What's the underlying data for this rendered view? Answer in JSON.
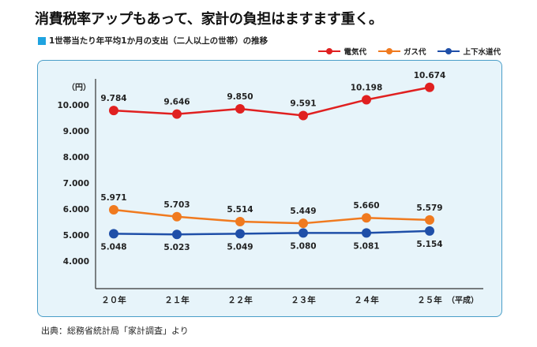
{
  "title": "消費税率アップもあって、家計の負担はますます重く。",
  "subtitle": "1世帯当たり年平均1か月の支出（二人以上の世帯）の推移",
  "source": "出典：総務省統計局「家計調査」より",
  "chart_data": {
    "type": "line",
    "title": "1世帯当たり年平均1か月の支出（二人以上の世帯）の推移",
    "ylabel": "（円）",
    "xlabel": "",
    "ylim": [
      3000,
      11000
    ],
    "yticks": [
      "10.000",
      "9.000",
      "8.000",
      "7.000",
      "6.000",
      "5.000",
      "4.000"
    ],
    "ytick_values": [
      10000,
      9000,
      8000,
      7000,
      6000,
      5000,
      4000
    ],
    "categories": [
      "２０年",
      "２１年",
      "２２年",
      "２３年",
      "２４年",
      "２５年"
    ],
    "x_unit": "（平成）",
    "legend_position": "top-right",
    "grid": false,
    "series": [
      {
        "name": "電気代",
        "color": "#e02020",
        "values": [
          9784,
          9646,
          9850,
          9591,
          10198,
          10674
        ],
        "labels": [
          "9.784",
          "9.646",
          "9.850",
          "9.591",
          "10.198",
          "10.674"
        ],
        "label_position": "above"
      },
      {
        "name": "ガス代",
        "color": "#f07a1f",
        "values": [
          5971,
          5703,
          5514,
          5449,
          5660,
          5579
        ],
        "labels": [
          "5.971",
          "5.703",
          "5.514",
          "5.449",
          "5.660",
          "5.579"
        ],
        "label_position": "above"
      },
      {
        "name": "上下水道代",
        "color": "#1f4fa8",
        "values": [
          5048,
          5023,
          5049,
          5080,
          5081,
          5154
        ],
        "labels": [
          "5.048",
          "5.023",
          "5.049",
          "5.080",
          "5.081",
          "5.154"
        ],
        "label_position": "below"
      }
    ]
  }
}
